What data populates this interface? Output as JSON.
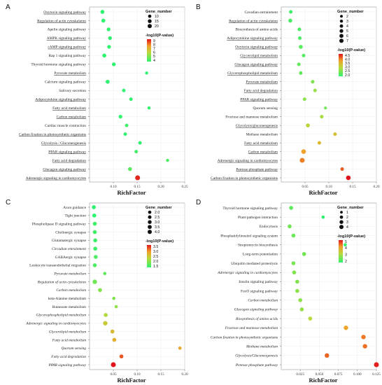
{
  "chart_data": [
    {
      "type": "scatter",
      "panel_label": "A",
      "xlabel": "RichFactor",
      "xlim": [
        0.05,
        0.25
      ],
      "xticks": [
        "0.10",
        "0.15",
        "0.20",
        "0.25"
      ],
      "xtick_values": [
        0.1,
        0.15,
        0.2,
        0.25
      ],
      "categories": [
        "Oxytocin signaling pathway",
        "Regulation of actin cytoskeleton",
        "Apelin signaling pathway",
        "AMPK signaling pathway",
        "cAMP signaling pathway",
        "Rap 1 signaling pathway",
        "Thyroid hormone signaling pathway",
        "Pyruvate metabolism",
        "Calcium signaling pathway",
        "Salivary secretion",
        "Adipocytokine signaling pathway",
        "Fatty acid metabolism",
        "Carbon metabolism",
        "Cardiac muscle contraction",
        "Carbon fixation in photosynthetic organisms",
        "Glycolysis / Gluconeogenesis",
        "PPAR signaling pathway",
        "Fatty acid degradation",
        "Glucagon signaling pathway",
        "Adrenergic signaling in cardiomyocytes"
      ],
      "red_labels": [
        "AMPK signaling pathway",
        "cAMP signaling pathway",
        "Adipocytokine signaling pathway",
        "Fatty acid metabolism",
        "PPAR signaling pathway",
        "Fatty acid degradation"
      ],
      "underlined_labels": [
        "Oxytocin signaling pathway",
        "Regulation of actin cytoskeleton",
        "AMPK signaling pathway",
        "cAMP signaling pathway",
        "Pyruvate metabolism",
        "Adipocytokine signaling pathway",
        "Fatty acid metabolism",
        "Carbon metabolism",
        "Carbon fixation in photosynthetic organisms",
        "Glycolysis / Gluconeogenesis",
        "PPAR signaling pathway",
        "Fatty acid degradation",
        "Glucagon signaling pathway",
        "Adrenergic signaling in cardiomyocytes"
      ],
      "rich_factor": [
        0.077,
        0.079,
        0.09,
        0.093,
        0.091,
        0.081,
        0.101,
        0.17,
        0.088,
        0.122,
        0.137,
        0.175,
        0.115,
        0.128,
        0.125,
        0.156,
        0.148,
        0.214,
        0.135,
        0.151
      ],
      "gene_number": [
        5,
        5,
        4,
        4,
        4,
        5,
        4,
        2,
        5,
        3,
        3,
        2,
        4,
        3,
        3,
        3,
        3,
        2,
        5,
        10
      ],
      "neg_log10_p": [
        3.8,
        3.9,
        3.6,
        3.5,
        3.7,
        3.9,
        3.6,
        3.3,
        3.6,
        3.4,
        3.5,
        3.6,
        3.7,
        4.2,
        3.8,
        3.9,
        4.3,
        4.4,
        4.6,
        8.8
      ],
      "legend": {
        "size_title": "Gene_number",
        "size_values": [
          10,
          15,
          20
        ],
        "color_title": "-log10(P-value)",
        "color_ticks": [
          "9",
          "8",
          "7",
          "6",
          "5",
          "4"
        ],
        "color_range": [
          4,
          9
        ]
      }
    },
    {
      "type": "scatter",
      "panel_label": "B",
      "xlabel": "RichFactor",
      "xlim": [
        0.0,
        0.2
      ],
      "xticks": [
        "0.05",
        "0.10",
        "0.15",
        "0.20"
      ],
      "xtick_values": [
        0.05,
        0.1,
        0.15,
        0.2
      ],
      "categories": [
        "Cavadian entrainment",
        "Regulation of actin cytoskeleton",
        "Biosynthesis of amino acids",
        "Adipocytokine signaling pathway",
        "Oxytocin signaling pathway",
        "Glycerolipid metabolism",
        "Glucagon signaling pathway",
        "Glycerophospholipid metabolism",
        "Pyruvate metabolism",
        "Fatty acid degradation",
        "PPAR signaling pathway",
        "Quorum sensing",
        "Fructose and mannose metabolism",
        "Glycolysis/gluconeogenesis",
        "Methane metabolism",
        "Fatty acid metabolism",
        "Carbon metabolism",
        "Adrenergic signaling in cardiomyocytes",
        "Pentose phosphate pathway",
        "Carbon fixation in photosynthetic organisms"
      ],
      "red_labels": [
        "Adipocytokine signaling pathway",
        "Glycerolipid metabolism",
        "Glycerophospholipid metabolism",
        "Fatty acid degradation",
        "PPAR signaling pathway",
        "Fatty acid metabolism"
      ],
      "underlined_labels": [
        "Regulation of actin cytoskeleton",
        "Adipocytokine signaling pathway",
        "Oxytocin signaling pathway",
        "Glycerolipid metabolism",
        "Glucagon signaling pathway",
        "Glycerophospholipid metabolism",
        "Pyruvate metabolism",
        "Fatty acid degradation",
        "PPAR signaling pathway",
        "Glycolysis/gluconeogenesis",
        "Fatty acid metabolism",
        "Carbon metabolism",
        "Adrenergic signaling in cardiomyocytes",
        "Pentose phosphate pathway",
        "Carbon fixation in photosynthetic organisms"
      ],
      "rich_factor": [
        0.02,
        0.019,
        0.038,
        0.039,
        0.041,
        0.047,
        0.037,
        0.041,
        0.066,
        0.071,
        0.049,
        0.093,
        0.085,
        0.056,
        0.113,
        0.08,
        0.047,
        0.044,
        0.128,
        0.141
      ],
      "gene_number": [
        2,
        3,
        2,
        2,
        3,
        2,
        2,
        2,
        2,
        2,
        2,
        1,
        2,
        3,
        2,
        2,
        5,
        6,
        2,
        5
      ],
      "neg_log10_p": [
        2.1,
        2.2,
        2.2,
        2.2,
        2.3,
        2.3,
        2.4,
        2.4,
        2.6,
        2.8,
        2.7,
        2.5,
        2.9,
        3.1,
        3.4,
        3.5,
        3.8,
        4.0,
        4.2,
        4.6
      ],
      "legend": {
        "size_title": "Gene_number",
        "size_values": [
          2,
          3,
          4,
          5,
          6,
          7
        ],
        "color_title": "-log10(P-value)",
        "color_ticks": [
          "4.5",
          "4.0",
          "3.5",
          "3.0",
          "2.5",
          "2.0"
        ],
        "color_range": [
          2.0,
          4.6
        ]
      }
    },
    {
      "type": "scatter",
      "panel_label": "C",
      "xlabel": "RichFactor",
      "xlim": [
        0.0,
        0.2
      ],
      "xticks": [
        "0.05",
        "0.10",
        "0.15",
        "0.20"
      ],
      "xtick_values": [
        0.05,
        0.1,
        0.15,
        0.2
      ],
      "categories": [
        "Axon guidance",
        "Tight junction",
        "Phospholipase D signaling pathway",
        "Cholinergic synapse",
        "Glutamatergic synapse",
        "Circadian entrainment",
        "GABAergic synapse",
        "Leukocyte transendothelial migration",
        "Pyruvate metabolism",
        "Regulation of actin cytoskeleton",
        "Carbon metabolism",
        "beta-Alanine metabolism",
        "Butanoate metabolism",
        "Glycerophospholipid metabolism",
        "Adrenergic signaling in cardiomyocytes",
        "Glycerolipid metabolism",
        "Fatty acid metabolism",
        "Quorum sensing",
        "Fatty acid degradation",
        "PPAR signaling pathway"
      ],
      "red_labels": [
        "Phospholipase D signaling pathway",
        "Butanoate metabolism",
        "Glycerophospholipid metabolism",
        "Glycerolipid metabolism",
        "Fatty acid metabolism",
        "Fatty acid degradation",
        "PPAR signaling pathway"
      ],
      "italic_labels": [
        "Circadian entrainment",
        "Pyruvate metabolism",
        "Regulation of actin cytoskeleton",
        "Carbon metabolism",
        "Glycerophospholipid metabolism",
        "Adrenergic signaling in cardiomyocytes",
        "Glycerolipid metabolism",
        "Fatty acid metabolism",
        "Quorum sensing",
        "Fatty acid degradation",
        "PPAR signaling pathway"
      ],
      "rich_factor": [
        0.009,
        0.01,
        0.011,
        0.011,
        0.012,
        0.012,
        0.013,
        0.011,
        0.032,
        0.011,
        0.022,
        0.051,
        0.056,
        0.034,
        0.033,
        0.048,
        0.052,
        0.19,
        0.067,
        0.05
      ],
      "gene_number": [
        2,
        2,
        2,
        2,
        2,
        2,
        2,
        2,
        1,
        3,
        2,
        1,
        1,
        2,
        3,
        2,
        2,
        1,
        2,
        4
      ],
      "neg_log10_p": [
        1.5,
        1.5,
        1.6,
        1.6,
        1.6,
        1.6,
        1.7,
        1.7,
        1.8,
        1.9,
        2.0,
        2.0,
        2.1,
        2.3,
        2.5,
        2.7,
        2.8,
        2.9,
        3.3,
        3.6
      ],
      "legend": {
        "size_title": "Gene_number",
        "size_values": [
          "2.0",
          "2.5",
          "3.0",
          "3.5",
          "4.0"
        ],
        "color_title": "-log10(P-value)",
        "color_ticks": [
          "3.5",
          "3.0",
          "2.5",
          "2.0",
          "1.5"
        ],
        "color_range": [
          1.5,
          3.6
        ]
      }
    },
    {
      "type": "scatter",
      "panel_label": "D",
      "xlabel": "RichFactor",
      "xlim": [
        0.0,
        0.125
      ],
      "xticks": [
        "0.025",
        "0.050",
        "0.075",
        "0.100",
        "0.125"
      ],
      "xtick_values": [
        0.025,
        0.05,
        0.075,
        0.1,
        0.125
      ],
      "categories": [
        "Thyroid hormone signaling pathway",
        "Plant-pathogen interaction",
        "Endocytosis",
        "Phosphatidylinositol signaling system",
        "Streptomycin biosynthesis",
        "Long-term potentiation",
        "Ubiquitin mediated proteolysis",
        "Adrenergic signaling in cardiomyocytes",
        "Insulin signaling pathway",
        "FoxO signaling pathway",
        "Carbon metabolism",
        "Glucagon signaling pathway",
        "Biosynthesis of amino acids",
        "Fructose and mannose metabolism",
        "Carbon fixation in photosynthetic organisms",
        "Methane metabolism",
        "Glycolysis/Gluconeogenesis",
        "Pentose phosphate pathway"
      ],
      "red_labels": [
        "Insulin signaling pathway",
        "FoxO signaling pathway"
      ],
      "italic_labels": [
        "Adrenergic signaling in cardiomyocytes",
        "Carbon metabolism",
        "Glucagon signaling pathway",
        "Biosynthesis of amino acids",
        "Fructose and mannose metabolism",
        "Carbon fixation in photosynthetic organisms",
        "Methane metabolism",
        "Glycolysis/Gluconeogenesis",
        "Pentose phosphate pathway"
      ],
      "rich_factor": [
        0.013,
        0.055,
        0.011,
        0.016,
        0.084,
        0.03,
        0.016,
        0.017,
        0.021,
        0.021,
        0.025,
        0.027,
        0.038,
        0.085,
        0.108,
        0.11,
        0.06,
        0.125
      ],
      "gene_number": [
        2,
        1,
        2,
        2,
        1,
        2,
        2,
        2,
        2,
        2,
        2,
        2,
        2,
        3,
        3,
        3,
        3,
        4
      ],
      "neg_log10_p": [
        1.8,
        1.2,
        2.0,
        1.9,
        1.3,
        2.0,
        2.1,
        2.2,
        2.2,
        2.3,
        2.3,
        2.4,
        2.8,
        4.0,
        4.4,
        4.5,
        4.6,
        5.2
      ],
      "legend": {
        "size_title": "Gene_number",
        "size_values": [
          1,
          2,
          3,
          4
        ],
        "color_title": "-log10(P-value)",
        "color_ticks": [
          "5",
          "4",
          "3",
          "2"
        ],
        "color_range": [
          1.2,
          5.3
        ]
      }
    }
  ]
}
